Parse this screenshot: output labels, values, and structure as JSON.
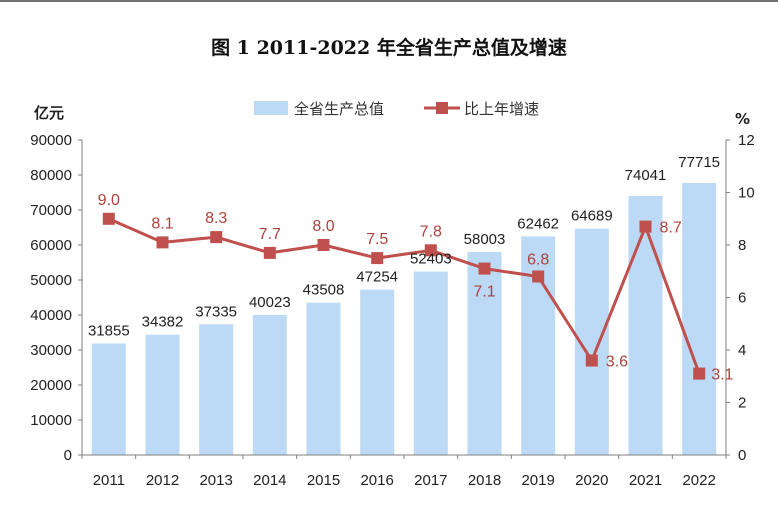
{
  "chart_data": {
    "type": "bar",
    "title": "图 1   2011-2022 年全省生产总值及增速",
    "categories": [
      "2011",
      "2012",
      "2013",
      "2014",
      "2015",
      "2016",
      "2017",
      "2018",
      "2019",
      "2020",
      "2021",
      "2022"
    ],
    "series": [
      {
        "name": "全省生产总值",
        "type": "bar",
        "axis": "left",
        "values": [
          31855,
          34382,
          37335,
          40023,
          43508,
          47254,
          52403,
          58003,
          62462,
          64689,
          74041,
          77715
        ],
        "labels": [
          "31855",
          "34382",
          "37335",
          "40023",
          "43508",
          "47254",
          "52403",
          "58003",
          "62462",
          "64689",
          "74041",
          "77715"
        ]
      },
      {
        "name": "比上年增速",
        "type": "line",
        "axis": "right",
        "values": [
          9.0,
          8.1,
          8.3,
          7.7,
          8.0,
          7.5,
          7.8,
          7.1,
          6.8,
          3.6,
          8.7,
          3.1
        ],
        "labels": [
          "9.0",
          "8.1",
          "8.3",
          "7.7",
          "8.0",
          "7.5",
          "7.8",
          "7.1",
          "6.8",
          "3.6",
          "8.7",
          "3.1"
        ]
      }
    ],
    "y_left": {
      "unit": "亿元",
      "lim": [
        0,
        90000
      ],
      "ticks": [
        "0",
        "10000",
        "20000",
        "30000",
        "40000",
        "50000",
        "60000",
        "70000",
        "80000",
        "90000"
      ]
    },
    "y_right": {
      "unit": "%",
      "lim": [
        0,
        12
      ],
      "ticks": [
        "0",
        "2",
        "4",
        "6",
        "8",
        "10",
        "12"
      ]
    },
    "grid": false,
    "legend": "top-center",
    "colors": {
      "bar": "#bcd9f5",
      "line": "#c0504d",
      "axis": "#7f7f7f",
      "text": "#222222"
    }
  }
}
